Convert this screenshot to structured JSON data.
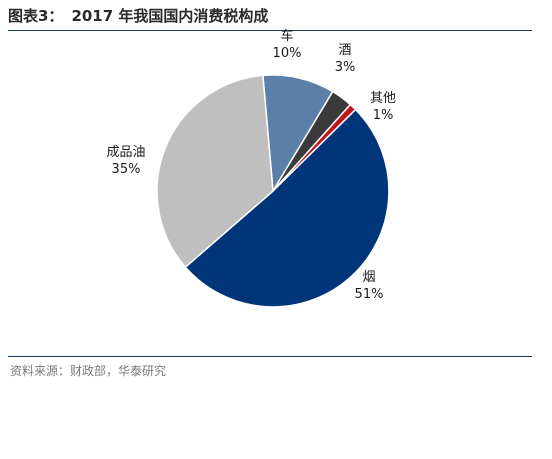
{
  "figure": {
    "label": "图表3：",
    "title": "2017 年我国国内消费税构成"
  },
  "source_text": "资料来源：财政部，华泰研究",
  "chart_data": {
    "type": "pie",
    "title": "2017 年我国国内消费税构成",
    "start_angle_deg": -95,
    "slices": [
      {
        "label": "车",
        "value": 10,
        "value_label": "10%",
        "color": "#5b7fa8"
      },
      {
        "label": "酒",
        "value": 3,
        "value_label": "3%",
        "color": "#3a3a3a"
      },
      {
        "label": "其他",
        "value": 1,
        "value_label": "1%",
        "color": "#c0161b"
      },
      {
        "label": "烟",
        "value": 51,
        "value_label": "51%",
        "color": "#00357a"
      },
      {
        "label": "成品油",
        "value": 35,
        "value_label": "35%",
        "color": "#bfbfbf"
      }
    ]
  }
}
